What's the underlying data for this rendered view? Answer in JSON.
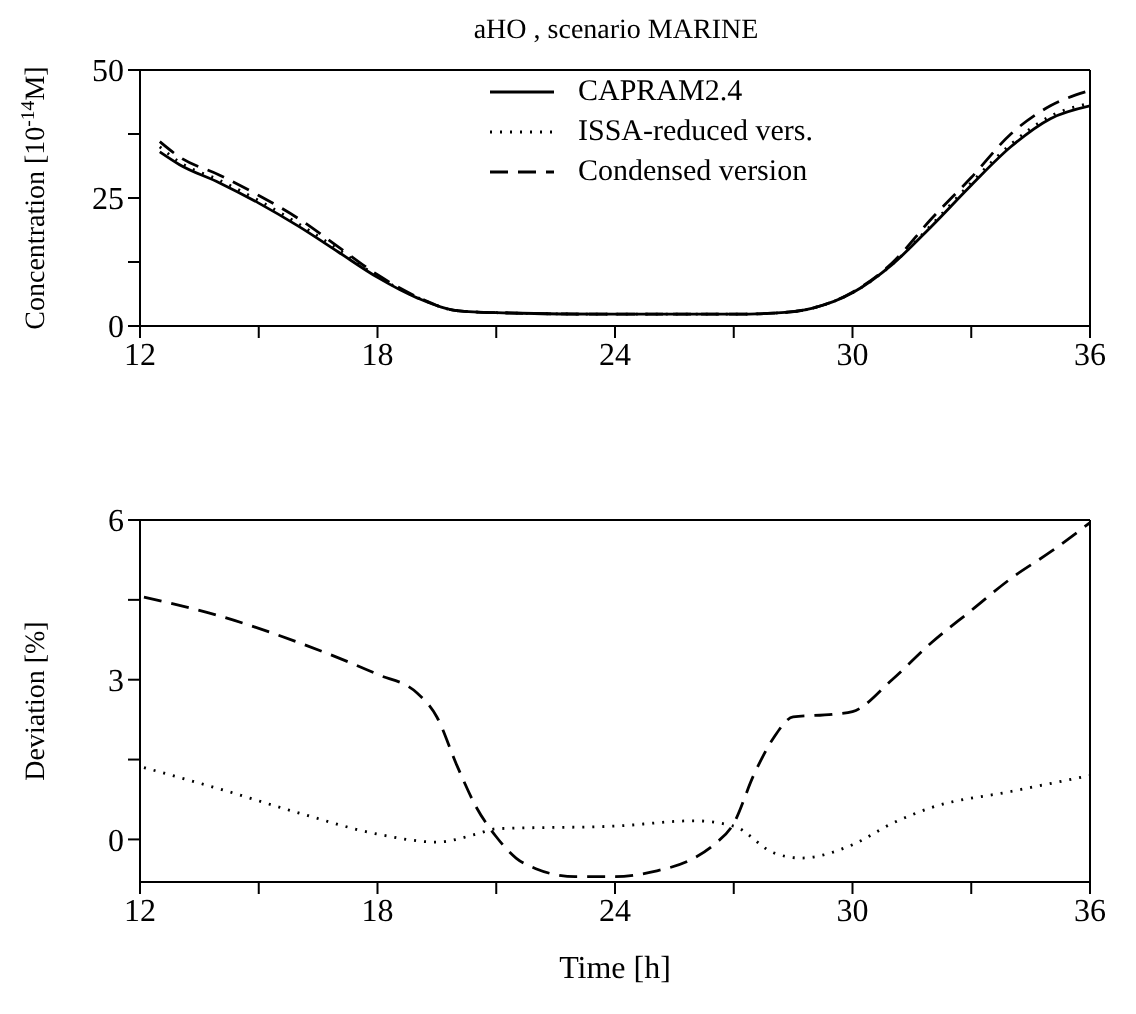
{
  "chart_data": [
    {
      "type": "line",
      "title": "aHO ,  scenario MARINE",
      "ylabel": "Concentration [10$^{-14}$M]",
      "xlim": [
        12,
        36
      ],
      "ylim": [
        0,
        50
      ],
      "xticks": [
        12,
        {
          "value": 15,
          "label": null
        },
        18,
        {
          "value": 21,
          "label": null
        },
        24,
        {
          "value": 27,
          "label": null
        },
        30,
        {
          "value": 33,
          "label": null
        },
        36
      ],
      "yticks": [
        0,
        {
          "value": 12.5,
          "label": null
        },
        25,
        {
          "value": 37.5,
          "label": null
        },
        50
      ],
      "legend": "top",
      "marker": "none",
      "series": [
        {
          "name": "CAPRAM2.4",
          "color": "#000000",
          "line_style": "solid",
          "x": [
            12.5,
            13,
            14,
            15,
            16,
            17,
            18,
            19,
            20,
            21,
            24,
            27,
            28,
            29,
            30,
            31,
            32,
            33,
            34,
            35,
            36
          ],
          "values": [
            34,
            31.5,
            28,
            24,
            19.5,
            14.5,
            9.5,
            5.5,
            3,
            2.6,
            2.3,
            2.3,
            2.5,
            3.5,
            6.5,
            12,
            19.5,
            27.5,
            35,
            40.5,
            43
          ]
        },
        {
          "name": "ISSA-reduced vers.",
          "color": "#000000",
          "line_style": "dotted",
          "x": [
            12.5,
            13,
            14,
            15,
            16,
            17,
            18,
            19,
            20,
            21,
            24,
            27,
            28,
            29,
            30,
            31,
            32,
            33,
            34,
            35,
            36
          ],
          "values": [
            35,
            32,
            28.5,
            24.5,
            20,
            15,
            9.7,
            5.6,
            3,
            2.6,
            2.3,
            2.3,
            2.5,
            3.5,
            6.5,
            12,
            19.8,
            28,
            35.5,
            41,
            43.5
          ]
        },
        {
          "name": "Condensed version",
          "color": "#000000",
          "line_style": "dashed",
          "x": [
            12.5,
            13,
            14,
            15,
            16,
            17,
            18,
            19,
            20,
            21,
            24,
            27,
            28,
            29,
            30,
            31,
            32,
            33,
            34,
            35,
            36
          ],
          "values": [
            36,
            33,
            29.5,
            25.5,
            21,
            15.5,
            10,
            5.7,
            3,
            2.6,
            2.3,
            2.3,
            2.5,
            3.5,
            6.6,
            12.3,
            21,
            29,
            37.5,
            43,
            46
          ]
        }
      ]
    },
    {
      "type": "line",
      "xlabel": "Time [h]",
      "ylabel": "Deviation [%]",
      "xlim": [
        12,
        36
      ],
      "ylim": [
        -0.8,
        6
      ],
      "xticks": [
        12,
        {
          "value": 15,
          "label": null
        },
        18,
        {
          "value": 21,
          "label": null
        },
        24,
        {
          "value": 27,
          "label": null
        },
        30,
        {
          "value": 33,
          "label": null
        },
        36
      ],
      "yticks": [
        0,
        {
          "value": 1.5,
          "label": null
        },
        3,
        {
          "value": 4.5,
          "label": null
        },
        6
      ],
      "marker": "none",
      "series": [
        {
          "color": "#000000",
          "line_style": "dotted",
          "x": [
            12.1,
            14,
            16,
            18,
            19.5,
            20.5,
            21,
            24,
            26,
            27,
            28,
            28.7,
            30,
            31,
            32,
            34,
            36
          ],
          "values": [
            1.35,
            0.95,
            0.5,
            0.1,
            -0.05,
            0.1,
            0.2,
            0.25,
            0.35,
            0.25,
            -0.25,
            -0.35,
            -0.1,
            0.3,
            0.6,
            0.9,
            1.2
          ]
        },
        {
          "color": "#000000",
          "line_style": "dashed",
          "x": [
            12.1,
            14,
            16,
            18,
            19,
            19.5,
            20,
            20.5,
            21,
            21.5,
            22,
            23,
            24,
            25,
            26,
            26.5,
            27,
            27.5,
            28,
            28.5,
            29.5,
            30,
            31,
            32,
            33,
            34,
            35,
            36
          ],
          "values": [
            4.55,
            4.2,
            3.7,
            3.1,
            2.75,
            2.3,
            1.4,
            0.6,
            0.05,
            -0.35,
            -0.55,
            -0.7,
            -0.7,
            -0.6,
            -0.35,
            -0.1,
            0.3,
            1.2,
            1.9,
            2.3,
            2.35,
            2.4,
            3,
            3.7,
            4.3,
            4.9,
            5.4,
            5.95
          ]
        }
      ]
    }
  ]
}
